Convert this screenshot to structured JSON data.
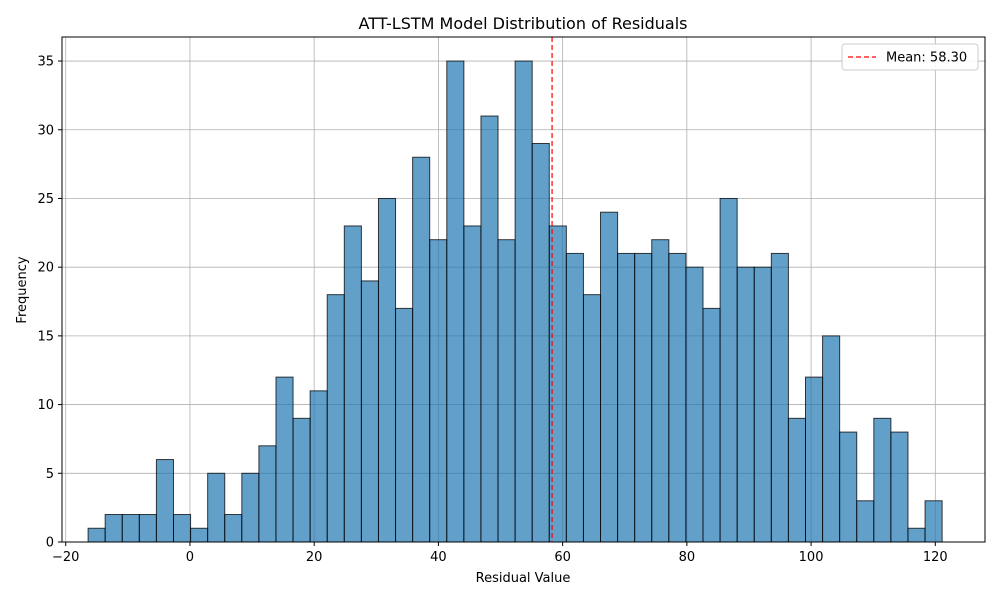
{
  "chart_data": {
    "type": "bar",
    "subtype": "histogram",
    "title": "ATT-LSTM Model Distribution of Residuals",
    "xlabel": "Residual Value",
    "ylabel": "Frequency",
    "xlim": [
      -20.6,
      128.0
    ],
    "ylim": [
      0,
      36.75
    ],
    "xticks": [
      -20,
      0,
      20,
      40,
      60,
      80,
      100,
      120
    ],
    "yticks": [
      0,
      5,
      10,
      15,
      20,
      25,
      30,
      35
    ],
    "grid": true,
    "legend_position": "top-right",
    "bin_start": -16.4,
    "bin_width": 2.75,
    "values": [
      1,
      2,
      2,
      2,
      6,
      2,
      1,
      5,
      2,
      5,
      7,
      12,
      9,
      11,
      18,
      23,
      19,
      25,
      17,
      28,
      22,
      35,
      23,
      31,
      22,
      35,
      29,
      23,
      21,
      18,
      24,
      21,
      21,
      22,
      21,
      20,
      17,
      25,
      20,
      20,
      21,
      9,
      12,
      15,
      8,
      3,
      9,
      8,
      1,
      3
    ],
    "bar_color": "#1f77b4",
    "bar_edge_color": "#000000",
    "mean_line": {
      "value": 58.3,
      "label": "Mean: 58.30",
      "color": "#ff0000",
      "style": "dashed"
    }
  }
}
